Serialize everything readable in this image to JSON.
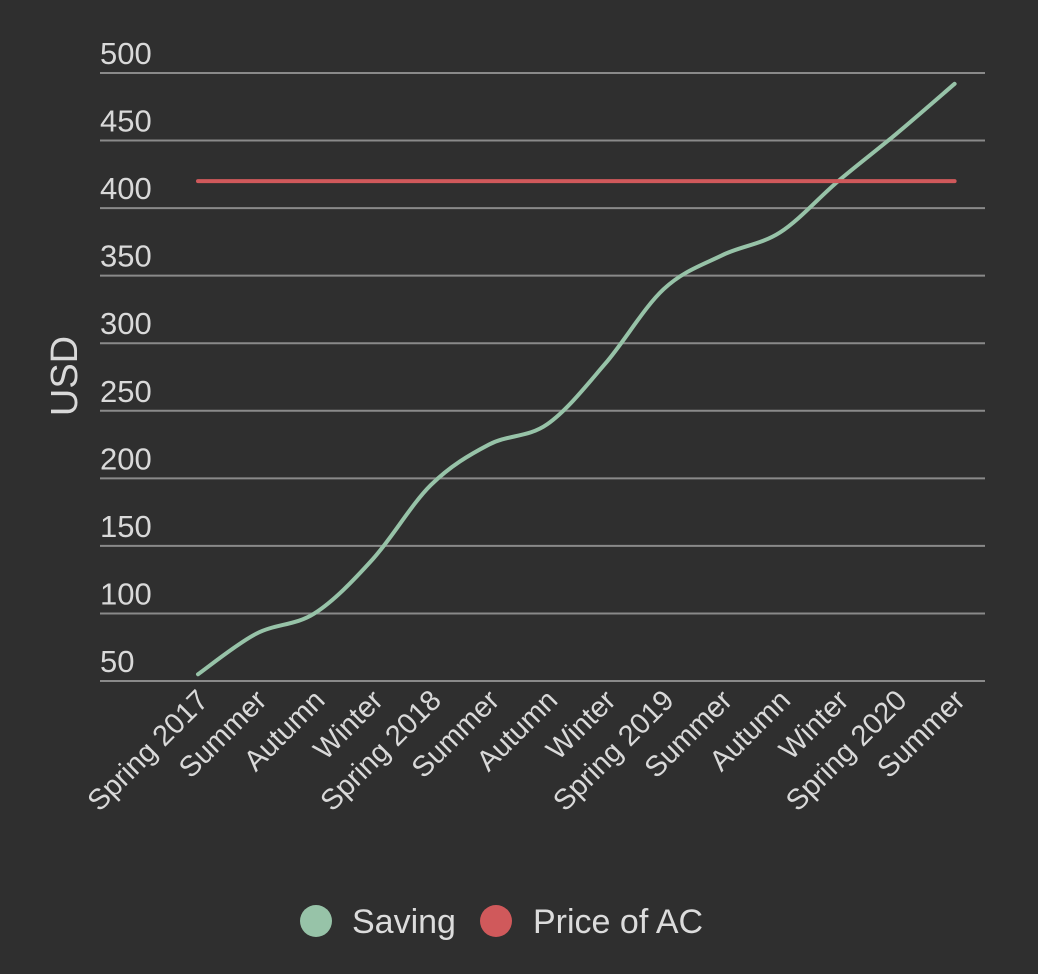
{
  "chart_data": {
    "type": "line",
    "title": "",
    "xlabel": "",
    "ylabel": "USD",
    "ylim": [
      50,
      500
    ],
    "yticks": [
      50,
      100,
      150,
      200,
      250,
      300,
      350,
      400,
      450,
      500
    ],
    "grid": true,
    "legend_position": "bottom-center",
    "categories": [
      "Spring 2017",
      "Summer",
      "Autumn",
      "Winter",
      "Spring 2018",
      "Summer",
      "Autumn",
      "Winter",
      "Spring 2019",
      "Summer",
      "Autumn",
      "Winter",
      "Spring 2020",
      "Summer"
    ],
    "series": [
      {
        "name": "Saving",
        "color": "#97c3a8",
        "smooth": true,
        "values": [
          55,
          85,
          100,
          140,
          195,
          225,
          240,
          285,
          340,
          365,
          382,
          420,
          455,
          492
        ]
      },
      {
        "name": "Price of AC",
        "color": "#d0595b",
        "smooth": false,
        "values": [
          420,
          420,
          420,
          420,
          420,
          420,
          420,
          420,
          420,
          420,
          420,
          420,
          420,
          420
        ]
      }
    ]
  }
}
